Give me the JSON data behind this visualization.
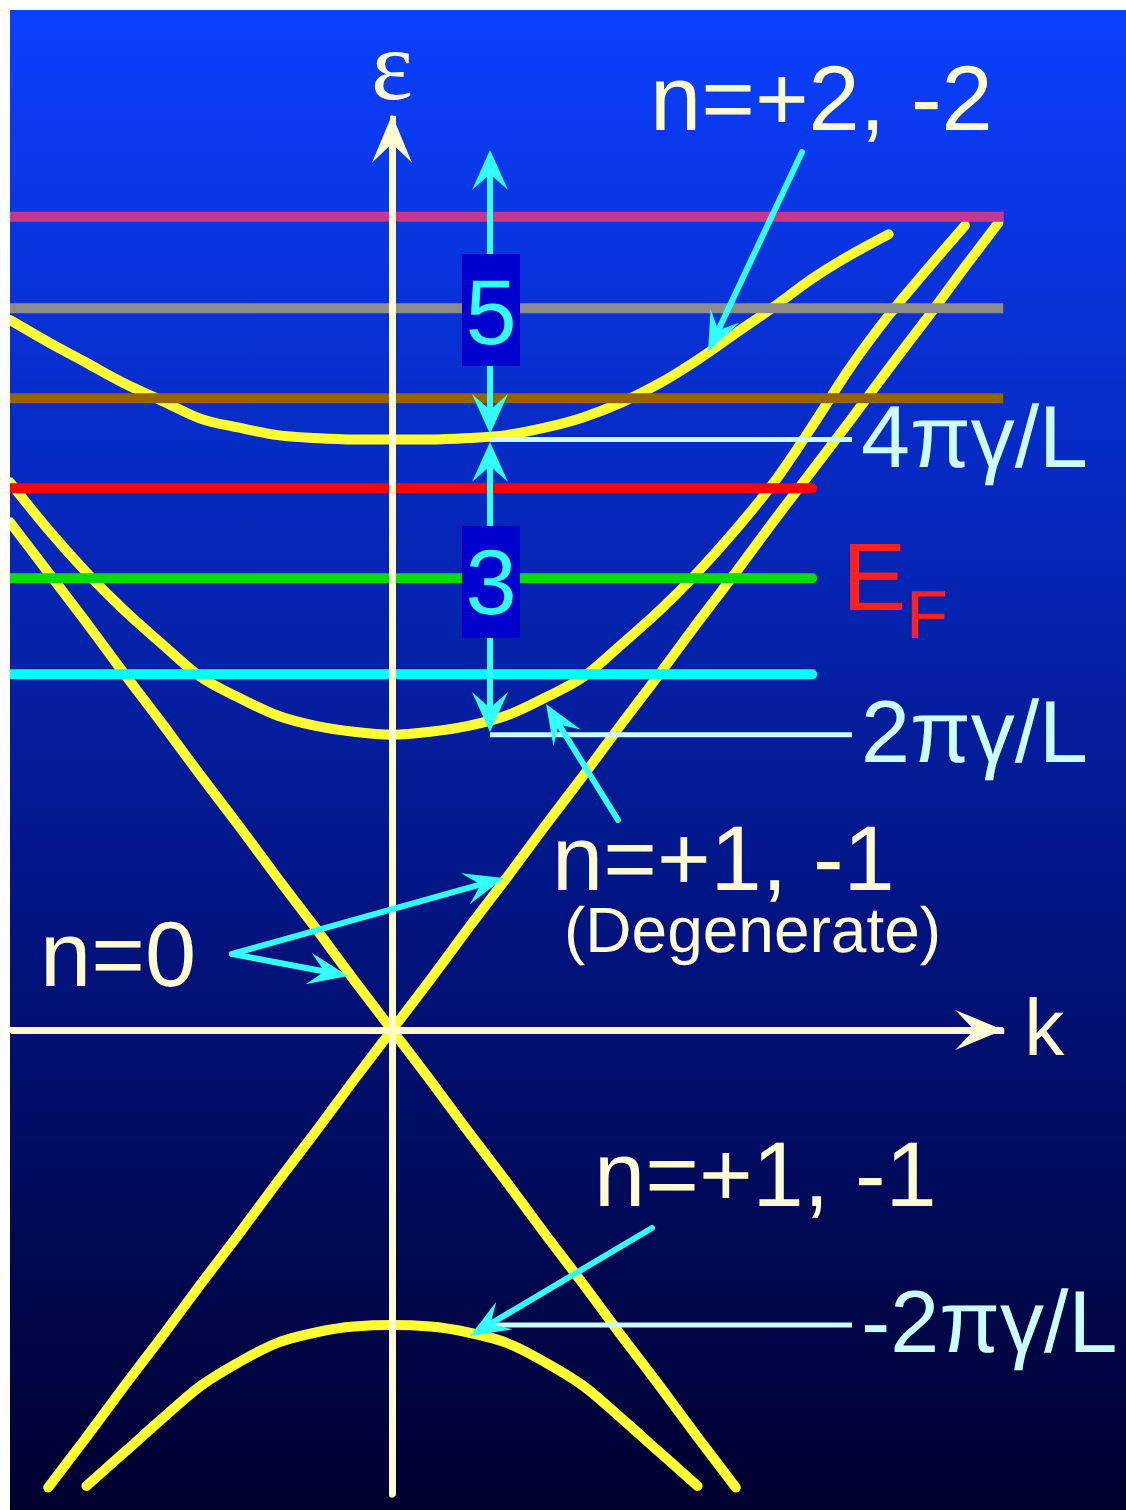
{
  "chart_data": {
    "type": "line",
    "xlabel": "k",
    "ylabel": "ε",
    "categories": [
      null,
      null,
      null,
      null,
      null,
      null,
      null,
      null,
      null,
      null,
      null,
      null,
      null,
      null,
      null,
      null,
      null,
      null,
      null,
      null,
      null,
      null,
      null,
      null,
      null,
      null,
      null
    ],
    "ylim": [
      -3.15,
      6.2
    ],
    "yticks": [
      {
        "value": -2,
        "label": "-2πγ/L"
      },
      {
        "value": 2,
        "label": "2πγ/L"
      },
      {
        "value": 4,
        "label": "4πγ/L"
      }
    ],
    "series": [
      {
        "color": "#ffff33",
        "values": [
          null,
          -3.1,
          -2.76,
          -2.41,
          -2.07,
          -1.72,
          -1.38,
          -1.03,
          -0.69,
          -0.34,
          0,
          0.34,
          0.69,
          1.03,
          1.38,
          1.72,
          2.07,
          2.41,
          2.76,
          3.1,
          3.45,
          3.79,
          4.13,
          4.48,
          4.82,
          5.17,
          5.51
        ]
      },
      {
        "color": "#ffff33",
        "values": [
          3.44,
          3.1,
          2.76,
          2.41,
          2.07,
          1.72,
          1.38,
          1.03,
          0.69,
          0.34,
          0,
          -0.34,
          -0.69,
          -1.03,
          -1.38,
          -1.72,
          -2.07,
          -2.41,
          -2.76,
          -3.1,
          null,
          null,
          null,
          null,
          null,
          null,
          null
        ]
      },
      {
        "color": "#ffff33",
        "values": [
          3.71,
          3.39,
          3.1,
          2.84,
          2.61,
          2.39,
          2.25,
          2.13,
          2.06,
          2.02,
          2,
          2.02,
          2.06,
          2.13,
          2.25,
          2.39,
          2.61,
          2.84,
          3.1,
          3.39,
          3.71,
          4.09,
          4.49,
          4.84,
          5.15,
          5.45,
          null
        ]
      },
      {
        "color": "#ffff33",
        "values": [
          null,
          null,
          -3.09,
          -2.86,
          -2.63,
          -2.41,
          -2.25,
          -2.12,
          -2.05,
          -2.01,
          -2,
          -2.01,
          -2.05,
          -2.12,
          -2.25,
          -2.41,
          -2.63,
          -2.86,
          -3.09,
          null,
          null,
          null,
          null,
          null,
          null,
          null,
          null
        ]
      },
      {
        "color": "#ffff33",
        "values": [
          4.81,
          4.66,
          4.52,
          4.38,
          4.26,
          4.14,
          4.08,
          4.03,
          4.01,
          4,
          4,
          4,
          4.01,
          4.03,
          4.08,
          4.15,
          4.25,
          4.38,
          4.54,
          4.72,
          4.9,
          5.09,
          5.25,
          5.39,
          null,
          null,
          null
        ]
      },
      {
        "color": "#c8378f",
        "values": [
          5.51,
          5.51,
          5.51,
          5.51,
          5.51,
          5.51,
          5.51,
          5.51,
          5.51,
          5.51,
          5.51,
          5.51,
          5.51,
          5.51,
          5.51,
          5.51,
          5.51,
          5.51,
          5.51,
          5.51,
          5.51,
          5.51,
          5.51,
          5.51,
          5.51,
          5.51,
          5.51
        ]
      },
      {
        "color": "#8c8c8c",
        "values": [
          4.89,
          4.89,
          4.89,
          4.89,
          4.89,
          4.89,
          4.89,
          4.89,
          4.89,
          4.89,
          4.89,
          4.89,
          null,
          null,
          4.89,
          4.89,
          4.89,
          4.89,
          4.89,
          4.89,
          4.89,
          4.89,
          4.89,
          4.89,
          4.89,
          4.89,
          4.89
        ]
      },
      {
        "color": "#966400",
        "values": [
          4.28,
          4.28,
          4.28,
          4.28,
          4.28,
          4.28,
          4.28,
          4.28,
          4.28,
          4.28,
          4.28,
          4.28,
          4.28,
          4.28,
          4.28,
          4.28,
          4.28,
          4.28,
          4.28,
          4.28,
          4.28,
          4.28,
          4.28,
          4.28,
          4.28,
          4.28,
          4.28
        ]
      },
      {
        "color": "#ff0000",
        "values": [
          3.67,
          3.67,
          3.67,
          3.67,
          3.67,
          3.67,
          3.67,
          3.67,
          3.67,
          3.67,
          3.67,
          3.67,
          3.67,
          3.67,
          3.67,
          3.67,
          3.67,
          3.67,
          3.67,
          3.67,
          3.67,
          3.67,
          null,
          null,
          null,
          null,
          null
        ]
      },
      {
        "name": "E$_{F}$",
        "color": "#00dd00",
        "values": [
          3.06,
          3.06,
          3.06,
          3.06,
          3.06,
          3.06,
          3.06,
          3.06,
          3.06,
          3.06,
          3.06,
          3.06,
          null,
          null,
          3.06,
          3.06,
          3.06,
          3.06,
          3.06,
          3.06,
          3.06,
          3.06,
          null,
          null,
          null,
          null,
          null
        ]
      },
      {
        "color": "#00ffff",
        "values": [
          2.41,
          2.41,
          2.41,
          2.41,
          2.41,
          2.41,
          2.41,
          2.41,
          2.41,
          2.41,
          2.41,
          2.41,
          2.41,
          2.41,
          2.41,
          2.41,
          2.41,
          2.41,
          2.41,
          2.41,
          2.41,
          2.41,
          null,
          null,
          null,
          null,
          null
        ]
      }
    ],
    "ref_lines": [
      {
        "axis": "y",
        "value": 0,
        "color": "#fffbd2"
      }
    ],
    "annotations": [
      "n=+2, -2",
      "n=+1, -1",
      "(Degenerate)",
      "n=0",
      "n=+1, -1",
      "5",
      "3"
    ]
  }
}
